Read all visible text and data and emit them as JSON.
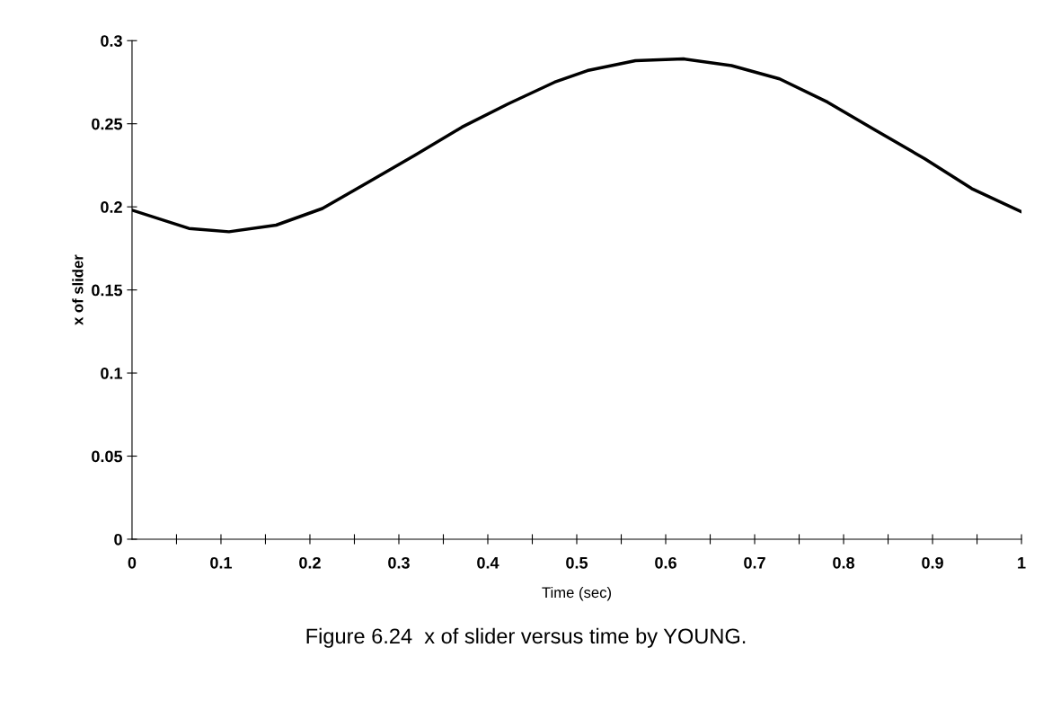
{
  "chart_data": {
    "type": "line",
    "xlabel": "Time (sec)",
    "ylabel": "x of slider",
    "annotations": [
      "Figure 6.24  x of slider versus time by YOUNG."
    ],
    "x": [
      0,
      0.064,
      0.109,
      0.162,
      0.214,
      0.266,
      0.318,
      0.371,
      0.423,
      0.475,
      0.512,
      0.566,
      0.62,
      0.674,
      0.728,
      0.782,
      0.836,
      0.891,
      0.944,
      1.0
    ],
    "series": [
      {
        "color": "#000000",
        "values": [
          0.198,
          0.187,
          0.185,
          0.189,
          0.199,
          0.215,
          0.231,
          0.248,
          0.262,
          0.275,
          0.282,
          0.288,
          0.289,
          0.285,
          0.277,
          0.263,
          0.246,
          0.229,
          0.211,
          0.197
        ]
      }
    ],
    "xlim": [
      0,
      1
    ],
    "ylim": [
      0,
      0.3
    ],
    "xticks": [
      0,
      {
        "value": 0.05,
        "label": null
      },
      0.1,
      {
        "value": 0.15,
        "label": null
      },
      0.2,
      {
        "value": 0.25,
        "label": null
      },
      0.3,
      {
        "value": 0.35,
        "label": null
      },
      0.4,
      {
        "value": 0.45,
        "label": null
      },
      0.5,
      {
        "value": 0.55,
        "label": null
      },
      0.6,
      {
        "value": 0.65,
        "label": null
      },
      0.7,
      {
        "value": 0.75,
        "label": null
      },
      0.8,
      {
        "value": 0.85,
        "label": null
      },
      0.9,
      {
        "value": 0.95,
        "label": null
      },
      1
    ],
    "yticks": [
      0,
      0.05,
      0.1,
      0.15,
      0.2,
      0.25,
      0.3
    ],
    "grid": false,
    "legend": false,
    "marker": "none",
    "line_style": "solid"
  }
}
